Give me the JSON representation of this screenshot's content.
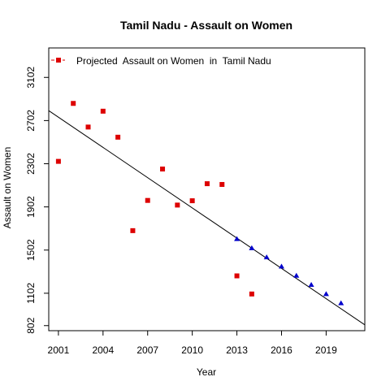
{
  "chart_data": {
    "type": "scatter",
    "title": "Tamil Nadu  -  Assault on Women",
    "xlabel": "Year",
    "ylabel": "Assault on Women",
    "xlim": [
      2000.35,
      2021.6
    ],
    "ylim": [
      755,
      3375
    ],
    "x_ticks": [
      2001,
      2004,
      2007,
      2010,
      2013,
      2016,
      2019
    ],
    "y_ticks": [
      802,
      1102,
      1502,
      1902,
      2302,
      2702,
      3102
    ],
    "legend": {
      "position": "top-left",
      "entries": [
        "Projected  Assault on Women  in  Tamil Nadu"
      ]
    },
    "colors": {
      "actual": "#dd0000",
      "projected": "#0000cc",
      "trend": "#000000"
    },
    "series": [
      {
        "marker": "square",
        "x": [
          2001,
          2002,
          2003,
          2004,
          2005,
          2006,
          2007,
          2008,
          2009,
          2010,
          2011,
          2012,
          2013,
          2014
        ],
        "y": [
          2324,
          2861,
          2642,
          2789,
          2548,
          1682,
          1962,
          2253,
          1919,
          1959,
          2117,
          2110,
          1263,
          1095
        ]
      },
      {
        "name": "Projected  Assault on Women  in  Tamil Nadu",
        "marker": "triangle",
        "x": [
          2013,
          2014,
          2015,
          2016,
          2017,
          2018,
          2019,
          2020
        ],
        "y": [
          1605,
          1520,
          1435,
          1350,
          1265,
          1180,
          1095,
          1010
        ]
      }
    ],
    "trend_line": {
      "x": [
        2000.35,
        2021.6
      ],
      "y": [
        2794,
        809
      ]
    }
  }
}
